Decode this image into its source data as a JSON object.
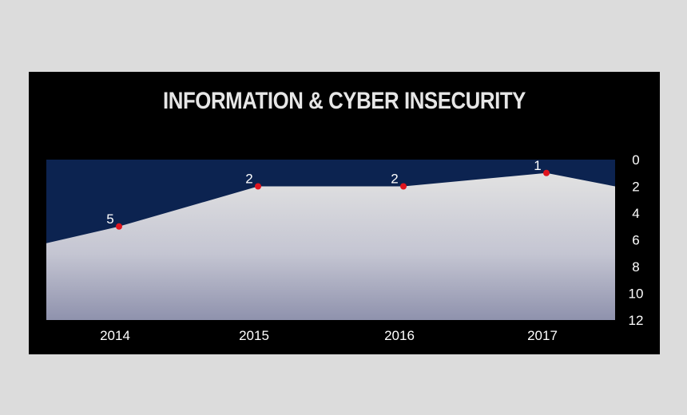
{
  "chart_data": {
    "type": "area",
    "title": "INFORMATION & CYBER INSECURITY",
    "x": [
      "2014",
      "2015",
      "2016",
      "2017"
    ],
    "values": [
      5,
      2,
      2,
      1
    ],
    "data_labels": [
      "5",
      "2",
      "2",
      "1"
    ],
    "ylim": [
      12,
      0
    ],
    "y_axis_inverted": true,
    "y_ticks": [
      0,
      2,
      4,
      6,
      8,
      10,
      12
    ],
    "y_axis_position": "right",
    "grid": false,
    "legend": "none",
    "colors": {
      "background": "#000000",
      "plot_background": "#0c2350",
      "area_top": "#e2e2e2",
      "area_bottom": "#8f92ad",
      "marker": "#e0141e",
      "text": "#ffffff",
      "page": "#dcdcdc"
    }
  }
}
